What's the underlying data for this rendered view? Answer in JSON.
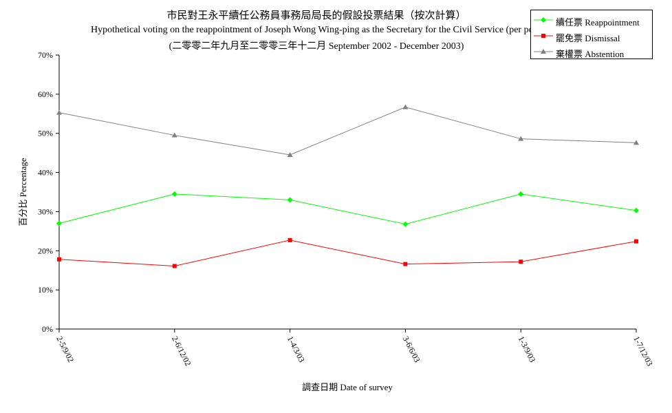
{
  "chart_data": {
    "type": "line",
    "title": "市民對王永平續任公務員事務局局長的假設投票結果（按次計算）",
    "subtitle": "Hypothetical voting on the reappointment of Joseph Wong Wing-ping as the Secretary for the Civil Service (per poll)",
    "subtitle2": "(二零零二年九月至二零零三年十二月 September 2002 - December 2003)",
    "xlabel": "調查日期 Date of survey",
    "ylabel": "百分比 Percentage",
    "categories": [
      "2-5/9/02",
      "2-6/12/02",
      "1-4/3/03",
      "3-6/6/03",
      "1-3/9/03",
      "1-7/12/03"
    ],
    "ylim": [
      0,
      70
    ],
    "yticks": [
      "0%",
      "10%",
      "20%",
      "30%",
      "40%",
      "50%",
      "60%",
      "70%"
    ],
    "grid": false,
    "legend_position": "top-right",
    "series": [
      {
        "name": "續任票 Reappointment",
        "color": "#00ff00",
        "marker": "diamond",
        "values": [
          27.0,
          34.5,
          33.0,
          26.8,
          34.5,
          30.3
        ]
      },
      {
        "name": "罷免票 Dismissal",
        "color": "#ff0000",
        "marker": "square",
        "values": [
          17.8,
          16.1,
          22.7,
          16.6,
          17.2,
          22.4
        ]
      },
      {
        "name": "棄權票 Abstention",
        "color": "#808080",
        "marker": "triangle",
        "values": [
          55.3,
          49.5,
          44.5,
          56.7,
          48.6,
          47.6
        ]
      }
    ]
  }
}
